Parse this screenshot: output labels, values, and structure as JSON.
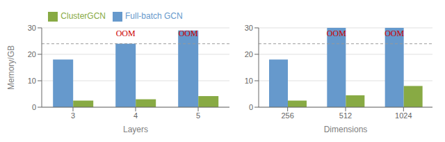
{
  "chart_data": [
    {
      "type": "bar",
      "x_label": "Layers",
      "y_label": "Memory/GB",
      "categories": [
        "3",
        "4",
        "5"
      ],
      "series": [
        {
          "name": "Full-batch GCN",
          "color": "#6699cc",
          "values": [
            18,
            24,
            29
          ]
        },
        {
          "name": "ClusterGCN",
          "color": "#88aa44",
          "values": [
            2.5,
            3.0,
            4.2
          ]
        }
      ],
      "ylim": [
        0,
        30
      ],
      "yticks": [
        0,
        10,
        20,
        30
      ],
      "grid": true,
      "legend": "top",
      "reference_lines": [
        {
          "y": 24,
          "color": "#999999",
          "line_style": "dashed"
        }
      ],
      "annotations": [
        {
          "text": "OOM",
          "category": "4",
          "series": "Full-batch GCN",
          "color": "#cc0000"
        },
        {
          "text": "OOM",
          "category": "5",
          "series": "Full-batch GCN",
          "color": "#cc0000"
        }
      ]
    },
    {
      "type": "bar",
      "x_label": "Dimensions",
      "categories": [
        "256",
        "512",
        "1024"
      ],
      "series": [
        {
          "name": "Full-batch GCN",
          "color": "#6699cc",
          "values": [
            18,
            30,
            30
          ]
        },
        {
          "name": "ClusterGCN",
          "color": "#88aa44",
          "values": [
            2.5,
            4.5,
            8.0
          ]
        }
      ],
      "ylim": [
        0,
        30
      ],
      "yticks": [
        0,
        10,
        20,
        30
      ],
      "grid": true,
      "reference_lines": [
        {
          "y": 24,
          "color": "#999999",
          "line_style": "dashed"
        }
      ],
      "annotations": [
        {
          "text": "OOM",
          "category": "512",
          "series": "Full-batch GCN",
          "color": "#cc0000"
        },
        {
          "text": "OOM",
          "category": "1024",
          "series": "Full-batch GCN",
          "color": "#cc0000"
        }
      ]
    }
  ]
}
